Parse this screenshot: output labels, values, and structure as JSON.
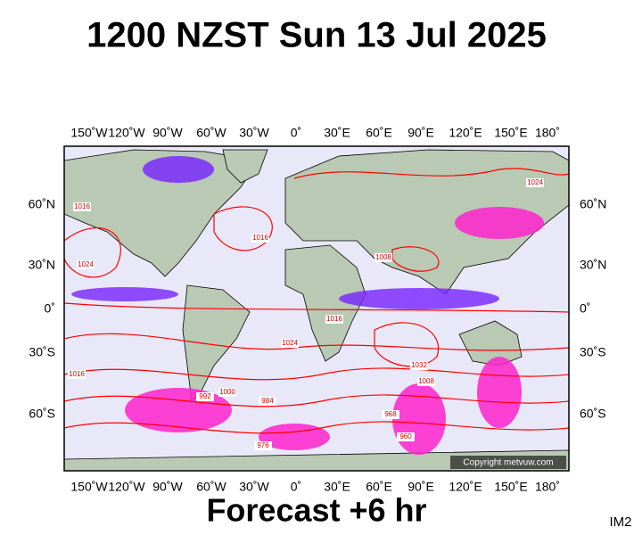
{
  "header": {
    "title": "1200 NZST Sun 13 Jul 2025"
  },
  "map": {
    "longitude_labels": [
      "150˚W",
      "120˚W",
      "90˚W",
      "60˚W",
      "30˚W",
      "0˚",
      "30˚E",
      "60˚E",
      "90˚E",
      "120˚E",
      "150˚E",
      "180˚"
    ],
    "latitude_labels": [
      "60˚N",
      "30˚N",
      "0˚",
      "30˚S",
      "60˚S"
    ],
    "isobar_labels": [
      "1016",
      "1024",
      "1016",
      "1008",
      "1016",
      "1024",
      "1032",
      "1008",
      "1000",
      "992",
      "984",
      "976",
      "968",
      "960",
      "1016",
      "1024"
    ],
    "copyright": "Copyright metvuw.com"
  },
  "footer": {
    "forecast": "Forecast +6 hr",
    "image_id": "IM2"
  }
}
